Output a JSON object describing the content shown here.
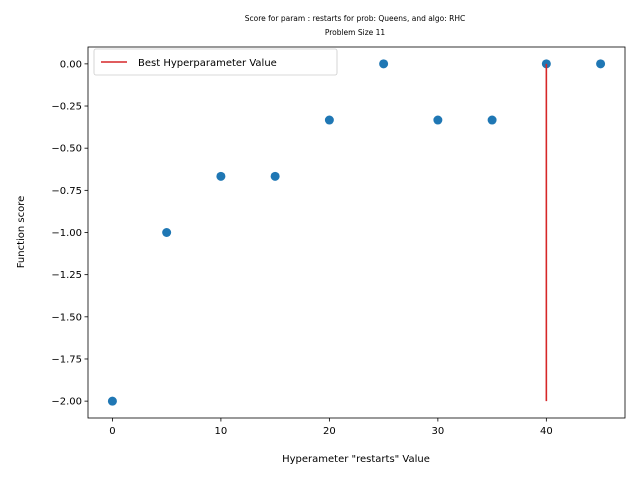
{
  "chart_data": {
    "type": "scatter",
    "title": "Score for param : restarts for prob: Queens, and algo: RHC",
    "subtitle": "Problem Size 11",
    "xlabel": "Hyperameter \"restarts\" Value",
    "ylabel": "Function score",
    "xlim": [
      -2.25,
      47.25
    ],
    "ylim": [
      -2.1,
      0.1
    ],
    "x_ticks": [
      0,
      10,
      20,
      30,
      40
    ],
    "x_tick_labels": [
      "0",
      "10",
      "20",
      "30",
      "40"
    ],
    "y_ticks": [
      0,
      -0.25,
      -0.5,
      -0.75,
      -1.0,
      -1.25,
      -1.5,
      -1.75,
      -2.0
    ],
    "y_tick_labels": [
      "0.00",
      "−0.25",
      "−0.50",
      "−0.75",
      "−1.00",
      "−1.25",
      "−1.50",
      "−1.75",
      "−2.00"
    ],
    "grid": false,
    "series": [
      {
        "type": "scatter",
        "color": "#1f77b4",
        "points": [
          {
            "x": 0,
            "y": -2.0
          },
          {
            "x": 5,
            "y": -1.0
          },
          {
            "x": 10,
            "y": -0.667
          },
          {
            "x": 15,
            "y": -0.667
          },
          {
            "x": 20,
            "y": -0.333
          },
          {
            "x": 25,
            "y": 0.0
          },
          {
            "x": 30,
            "y": -0.333
          },
          {
            "x": 35,
            "y": -0.333
          },
          {
            "x": 40,
            "y": 0.0
          },
          {
            "x": 45,
            "y": 0.0
          }
        ]
      },
      {
        "type": "vline",
        "name": "Best Hyperparameter Value",
        "color": "#d62728",
        "x": 40,
        "ymin": -2.0,
        "ymax": 0.0
      }
    ],
    "legend": {
      "position": "top-left",
      "entries": [
        "Best Hyperparameter Value"
      ]
    }
  }
}
